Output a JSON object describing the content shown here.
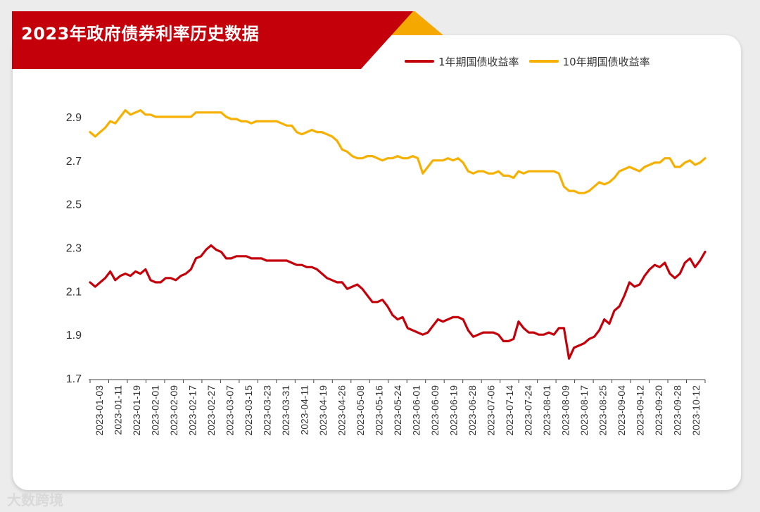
{
  "title": "2023年政府债券利率历史数据",
  "watermark": "大数跨境",
  "colors": {
    "banner": "#c4000b",
    "accent": "#f5a800",
    "series_1y": "#c4000b",
    "series_10y": "#f5b000"
  },
  "chart_data": {
    "type": "line",
    "title": "2023年政府债券利率历史数据",
    "xlabel": "",
    "ylabel": "",
    "ylim": [
      1.7,
      3.0
    ],
    "yticks": [
      1.7,
      1.9,
      2.1,
      2.3,
      2.5,
      2.7,
      2.9
    ],
    "ytick_labels": [
      "1.7",
      "1.9",
      "2.1",
      "2.3",
      "2.5",
      "2.7",
      "2.9"
    ],
    "xtick_labels": [
      "2023-01-03",
      "2023-01-11",
      "2023-01-19",
      "2023-02-01",
      "2023-02-09",
      "2023-02-17",
      "2023-02-27",
      "2023-03-07",
      "2023-03-15",
      "2023-03-23",
      "2023-03-31",
      "2023-04-11",
      "2023-04-19",
      "2023-04-26",
      "2023-05-08",
      "2023-05-16",
      "2023-05-24",
      "2023-06-01",
      "2023-06-09",
      "2023-06-19",
      "2023-06-28",
      "2023-07-06",
      "2023-07-14",
      "2023-07-24",
      "2023-08-01",
      "2023-08-09",
      "2023-08-17",
      "2023-08-25",
      "2023-09-04",
      "2023-09-12",
      "2023-09-20",
      "2023-09-28",
      "2023-10-12"
    ],
    "legend_position": "top-right",
    "grid": false,
    "series": [
      {
        "name": "1年期国债收益率",
        "color": "#c4000b",
        "values": [
          2.14,
          2.12,
          2.14,
          2.16,
          2.19,
          2.15,
          2.17,
          2.18,
          2.17,
          2.19,
          2.18,
          2.2,
          2.15,
          2.14,
          2.14,
          2.16,
          2.16,
          2.15,
          2.17,
          2.18,
          2.2,
          2.25,
          2.26,
          2.29,
          2.31,
          2.29,
          2.28,
          2.25,
          2.25,
          2.26,
          2.26,
          2.26,
          2.25,
          2.25,
          2.25,
          2.24,
          2.24,
          2.24,
          2.24,
          2.24,
          2.23,
          2.22,
          2.22,
          2.21,
          2.21,
          2.2,
          2.18,
          2.16,
          2.15,
          2.14,
          2.14,
          2.11,
          2.12,
          2.13,
          2.11,
          2.08,
          2.05,
          2.05,
          2.06,
          2.03,
          1.99,
          1.97,
          1.98,
          1.93,
          1.92,
          1.91,
          1.9,
          1.91,
          1.94,
          1.97,
          1.96,
          1.97,
          1.98,
          1.98,
          1.97,
          1.92,
          1.89,
          1.9,
          1.91,
          1.91,
          1.91,
          1.9,
          1.87,
          1.87,
          1.88,
          1.96,
          1.93,
          1.91,
          1.91,
          1.9,
          1.9,
          1.91,
          1.9,
          1.93,
          1.93,
          1.79,
          1.84,
          1.85,
          1.86,
          1.88,
          1.89,
          1.92,
          1.97,
          1.95,
          2.01,
          2.03,
          2.08,
          2.14,
          2.12,
          2.13,
          2.17,
          2.2,
          2.22,
          2.21,
          2.23,
          2.18,
          2.16,
          2.18,
          2.23,
          2.25,
          2.21,
          2.24,
          2.28
        ]
      },
      {
        "name": "10年期国债收益率",
        "color": "#f5b000",
        "values": [
          2.83,
          2.81,
          2.83,
          2.85,
          2.88,
          2.87,
          2.9,
          2.93,
          2.91,
          2.92,
          2.93,
          2.91,
          2.91,
          2.9,
          2.9,
          2.9,
          2.9,
          2.9,
          2.9,
          2.9,
          2.9,
          2.92,
          2.92,
          2.92,
          2.92,
          2.92,
          2.92,
          2.9,
          2.89,
          2.89,
          2.88,
          2.88,
          2.87,
          2.88,
          2.88,
          2.88,
          2.88,
          2.88,
          2.87,
          2.86,
          2.86,
          2.83,
          2.82,
          2.83,
          2.84,
          2.83,
          2.83,
          2.82,
          2.81,
          2.79,
          2.75,
          2.74,
          2.72,
          2.71,
          2.71,
          2.72,
          2.72,
          2.71,
          2.7,
          2.71,
          2.71,
          2.72,
          2.71,
          2.71,
          2.72,
          2.71,
          2.64,
          2.67,
          2.7,
          2.7,
          2.7,
          2.71,
          2.7,
          2.71,
          2.69,
          2.65,
          2.64,
          2.65,
          2.65,
          2.64,
          2.64,
          2.65,
          2.63,
          2.63,
          2.62,
          2.65,
          2.64,
          2.65,
          2.65,
          2.65,
          2.65,
          2.65,
          2.65,
          2.64,
          2.58,
          2.56,
          2.56,
          2.55,
          2.55,
          2.56,
          2.58,
          2.6,
          2.59,
          2.6,
          2.62,
          2.65,
          2.66,
          2.67,
          2.66,
          2.65,
          2.67,
          2.68,
          2.69,
          2.69,
          2.71,
          2.71,
          2.67,
          2.67,
          2.69,
          2.7,
          2.68,
          2.69,
          2.71
        ]
      }
    ]
  }
}
